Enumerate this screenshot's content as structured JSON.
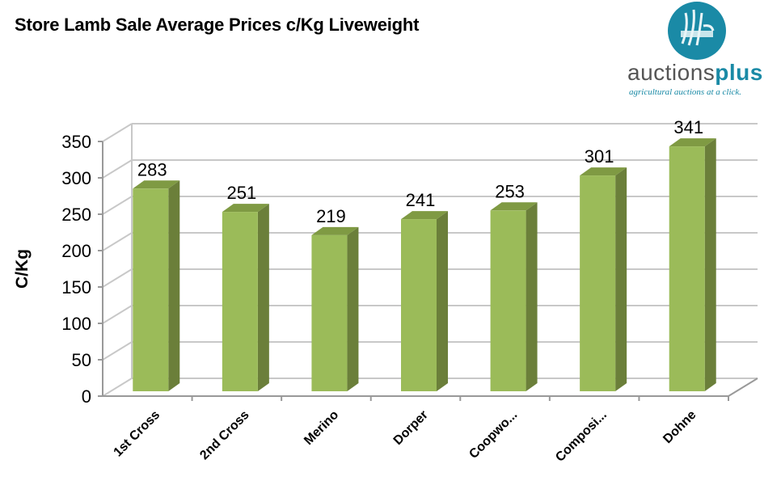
{
  "title": "Store Lamb Sale Average Prices c/Kg Liveweight",
  "logo": {
    "word_regular": "auctions",
    "word_bold": "plus",
    "tagline": "agricultural auctions at a click."
  },
  "colors": {
    "bar_front": "#9bbb59",
    "bar_side": "#6b7f3a",
    "bar_top": "#7f9a43",
    "grid": "#c8c8c8",
    "logo_circle": "#1a8aa6"
  },
  "chart_data": {
    "type": "bar",
    "title": "Store Lamb Sale Average Prices c/Kg Liveweight",
    "xlabel": "",
    "ylabel": "C/Kg",
    "categories": [
      "1st Cross",
      "2nd Cross",
      "Merino",
      "Dorper",
      "Coopwo...",
      "Composi...",
      "Dohne"
    ],
    "values": [
      283,
      251,
      219,
      241,
      253,
      301,
      341
    ],
    "ylim": [
      0,
      350
    ],
    "yticks": [
      0,
      50,
      100,
      150,
      200,
      250,
      300,
      350
    ],
    "grid": true,
    "legend": "none",
    "data_labels": true,
    "style": "3d-column"
  }
}
